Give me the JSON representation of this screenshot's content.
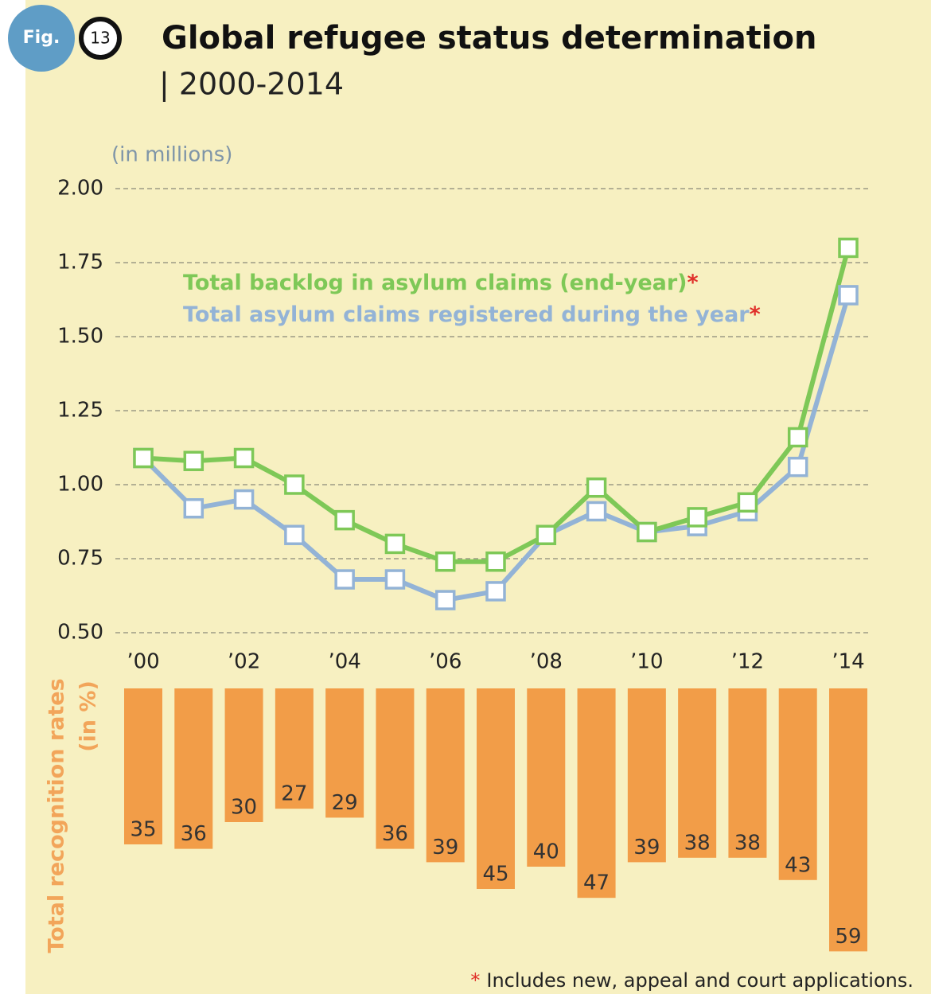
{
  "fig_label": "Fig.",
  "fig_number": "13",
  "footnote_marker": "*",
  "footnote": "Includes new, appeal and court applications.",
  "chart_data": [
    {
      "type": "line",
      "title": "Global refugee status determination",
      "subtitle": "| 2000-2014",
      "y_label": "(in millions)",
      "categories": [
        "’00",
        null,
        "’02",
        null,
        "’04",
        null,
        "’06",
        null,
        "’08",
        null,
        "’10",
        null,
        "’12",
        null,
        "’14"
      ],
      "series": [
        {
          "name": "Total backlog in asylum claims (end-year)",
          "color": "#7ec857",
          "values": [
            1.09,
            1.08,
            1.09,
            1.0,
            0.88,
            0.8,
            0.74,
            0.74,
            0.83,
            0.99,
            0.84,
            0.89,
            0.94,
            1.16,
            1.8
          ]
        },
        {
          "name": "Total asylum claims registered during the year",
          "color": "#93b3d6",
          "values": [
            1.09,
            0.92,
            0.95,
            0.83,
            0.68,
            0.68,
            0.61,
            0.64,
            0.83,
            0.91,
            0.84,
            0.86,
            0.91,
            1.06,
            1.64
          ]
        }
      ],
      "ylim": [
        0.5,
        2.0
      ],
      "yticks": [
        {
          "value": 0.5,
          "label": "0.50"
        },
        0.75,
        {
          "value": 1.0,
          "label": "1.00"
        },
        1.25,
        {
          "value": 1.5,
          "label": "1.50"
        },
        1.75,
        {
          "value": 2.0,
          "label": "2.00"
        }
      ],
      "grid": true
    },
    {
      "type": "bar",
      "y_label": "Total recognition rates",
      "y_unit": "(in %)",
      "color": "#f29d48",
      "values": [
        35,
        36,
        30,
        27,
        29,
        36,
        39,
        45,
        40,
        47,
        39,
        38,
        38,
        43,
        59
      ]
    }
  ]
}
